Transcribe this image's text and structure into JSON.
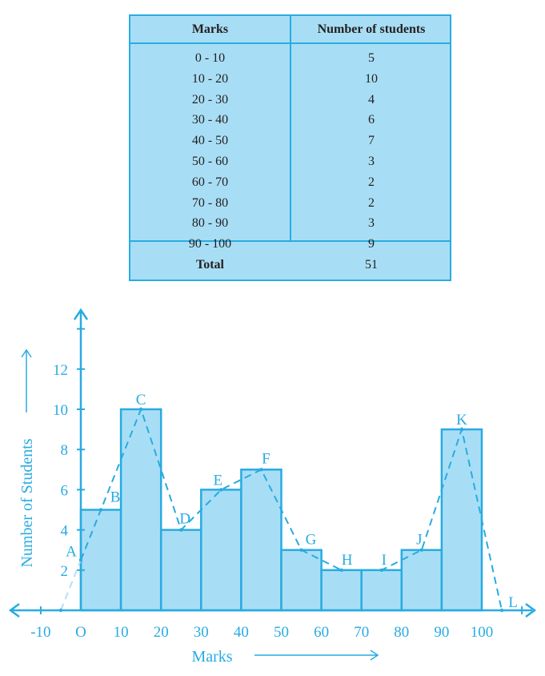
{
  "table": {
    "headers": [
      "Marks",
      "Number of students"
    ],
    "rows": [
      [
        "0 - 10",
        "5"
      ],
      [
        "10 - 20",
        "10"
      ],
      [
        "20 - 30",
        "4"
      ],
      [
        "30 - 40",
        "6"
      ],
      [
        "40 - 50",
        "7"
      ],
      [
        "50 - 60",
        "3"
      ],
      [
        "60 - 70",
        "2"
      ],
      [
        "70 - 80",
        "2"
      ],
      [
        "80 - 90",
        "3"
      ],
      [
        "90 - 100",
        "9"
      ]
    ],
    "total_label": "Total",
    "total_value": "51"
  },
  "chart_data": {
    "type": "bar",
    "subtype": "histogram_with_frequency_polygon",
    "categories": [
      "0-10",
      "10-20",
      "20-30",
      "30-40",
      "40-50",
      "50-60",
      "60-70",
      "70-80",
      "80-90",
      "90-100"
    ],
    "values": [
      5,
      10,
      4,
      6,
      7,
      3,
      2,
      2,
      3,
      9
    ],
    "title": "",
    "xlabel": "Marks",
    "ylabel": "Number of Students",
    "xlim": [
      -10,
      110
    ],
    "ylim": [
      0,
      14
    ],
    "x_ticks": [
      "-10",
      "O",
      "10",
      "20",
      "30",
      "40",
      "50",
      "60",
      "70",
      "80",
      "90",
      "100"
    ],
    "y_ticks": [
      "2",
      "4",
      "6",
      "8",
      "10",
      "12"
    ],
    "grid": false,
    "frequency_polygon": {
      "points": [
        {
          "label": "A",
          "x": -5,
          "y": 0,
          "note": "extends to (-5,0), label at x=0 intersection"
        },
        {
          "label": "B",
          "x": 5,
          "y": 5
        },
        {
          "label": "C",
          "x": 15,
          "y": 10
        },
        {
          "label": "D",
          "x": 25,
          "y": 4
        },
        {
          "label": "E",
          "x": 35,
          "y": 6
        },
        {
          "label": "F",
          "x": 45,
          "y": 7
        },
        {
          "label": "G",
          "x": 55,
          "y": 3
        },
        {
          "label": "H",
          "x": 65,
          "y": 2
        },
        {
          "label": "I",
          "x": 75,
          "y": 2
        },
        {
          "label": "J",
          "x": 85,
          "y": 3
        },
        {
          "label": "K",
          "x": 95,
          "y": 9
        },
        {
          "label": "L",
          "x": 105,
          "y": 0
        }
      ],
      "style": "dashed"
    },
    "colors": {
      "bar_fill": "#a8def5",
      "line": "#29abe2"
    }
  }
}
